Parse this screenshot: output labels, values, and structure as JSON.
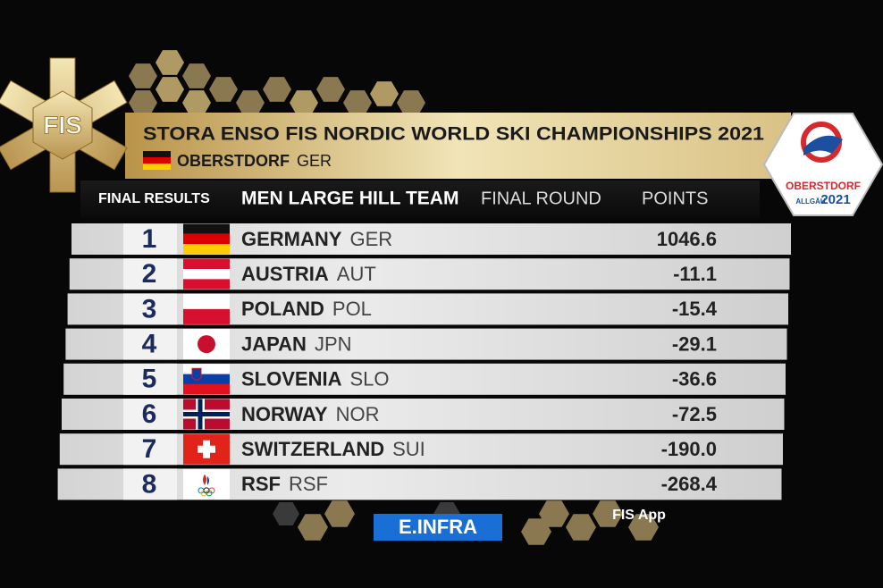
{
  "header": {
    "title": "STORA ENSO FIS NORDIC WORLD SKI CHAMPIONSHIPS 2021",
    "location": "OBERSTDORF",
    "location_code": "GER"
  },
  "logo": {
    "fis": "FIS",
    "venue": "OBERSTDORF",
    "region": "ALLGÄU",
    "year": "2021"
  },
  "results_header": {
    "label": "FINAL RESULTS",
    "event": "MEN LARGE HILL TEAM",
    "round": "FINAL ROUND",
    "points": "POINTS"
  },
  "table": {
    "rows": [
      [
        "1",
        "GERMANY",
        "GER",
        "1046.6"
      ],
      [
        "2",
        "AUSTRIA",
        "AUT",
        "-11.1"
      ],
      [
        "3",
        "POLAND",
        "POL",
        "-15.4"
      ],
      [
        "4",
        "JAPAN",
        "JPN",
        "-29.1"
      ],
      [
        "5",
        "SLOVENIA",
        "SLO",
        "-36.6"
      ],
      [
        "6",
        "NORWAY",
        "NOR",
        "-72.5"
      ],
      [
        "7",
        "SWITZERLAND",
        "SUI",
        "-190.0"
      ],
      [
        "8",
        "RSF",
        "RSF",
        "-268.4"
      ]
    ]
  },
  "footer": {
    "sponsor": "E.INFRA",
    "app": "FIS App"
  }
}
